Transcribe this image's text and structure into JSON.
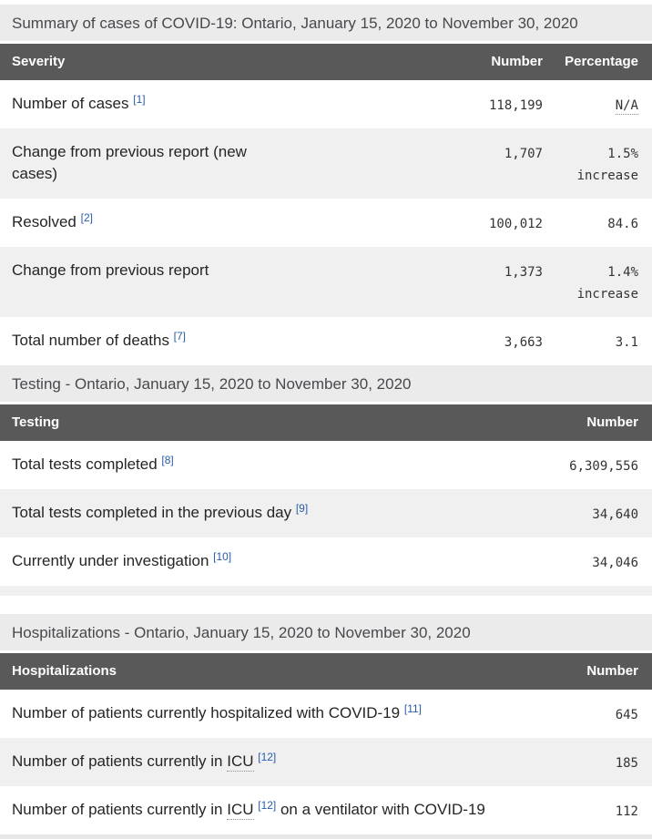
{
  "colors": {
    "header_bg": "#595959",
    "header_text": "#ffffff",
    "caption_bg": "#ebebeb",
    "stripe_bg": "#f0f0f0",
    "footnote_link_blue": "#2a5caa",
    "body_text": "#252525",
    "number_text": "#333333"
  },
  "tables": [
    {
      "caption": "Summary of cases of COVID-19: Ontario, January 15, 2020 to November 30, 2020",
      "columns": [
        "Severity",
        "Number",
        "Percentage"
      ],
      "layout": "three-col",
      "rows": [
        {
          "label_parts": [
            {
              "text": "Number of cases "
            },
            {
              "sup": "[1]"
            }
          ],
          "number": "118,199",
          "percentage": "N/A",
          "percentage_abbr": true
        },
        {
          "label_parts": [
            {
              "text": "Change from previous report (new cases)"
            }
          ],
          "number": "1,707",
          "percentage": "1.5% increase"
        },
        {
          "label_parts": [
            {
              "text": "Resolved "
            },
            {
              "sup": "[2]"
            }
          ],
          "number": "100,012",
          "percentage": "84.6"
        },
        {
          "label_parts": [
            {
              "text": "Change from previous report"
            }
          ],
          "number": "1,373",
          "percentage": "1.4% increase"
        },
        {
          "label_parts": [
            {
              "text": "Total number of deaths "
            },
            {
              "sup": "[7]"
            }
          ],
          "number": "3,663",
          "percentage": "3.1"
        }
      ]
    },
    {
      "caption": "Testing - Ontario, January 15, 2020 to November 30, 2020",
      "columns": [
        "Testing",
        "Number"
      ],
      "layout": "two-col",
      "trailing_stripe": true,
      "gap_after": true,
      "rows": [
        {
          "label_parts": [
            {
              "text": "Total tests completed "
            },
            {
              "sup": "[8]"
            }
          ],
          "number": "6,309,556"
        },
        {
          "label_parts": [
            {
              "text": "Total tests completed in the previous day "
            },
            {
              "sup": "[9]"
            }
          ],
          "number": "34,640"
        },
        {
          "label_parts": [
            {
              "text": "Currently under investigation "
            },
            {
              "sup": "[10]"
            }
          ],
          "number": "34,046"
        }
      ]
    },
    {
      "caption": "Hospitalizations - Ontario, January 15, 2020 to November 30, 2020",
      "columns": [
        "Hospitalizations",
        "Number"
      ],
      "layout": "two-col",
      "rows": [
        {
          "label_parts": [
            {
              "text": "Number of patients currently hospitalized with COVID-19 "
            },
            {
              "sup": "[11]"
            }
          ],
          "number": "645"
        },
        {
          "label_parts": [
            {
              "text": "Number of patients currently in "
            },
            {
              "abbr": "ICU"
            },
            {
              "text": " "
            },
            {
              "sup": "[12]"
            }
          ],
          "number": "185"
        },
        {
          "label_parts": [
            {
              "text": "Number of patients currently in "
            },
            {
              "abbr": "ICU"
            },
            {
              "text": " "
            },
            {
              "sup": "[12]"
            },
            {
              "text": " on a ventilator with COVID-19"
            }
          ],
          "number": "112"
        }
      ]
    }
  ],
  "bottom_partial_next_table": true
}
